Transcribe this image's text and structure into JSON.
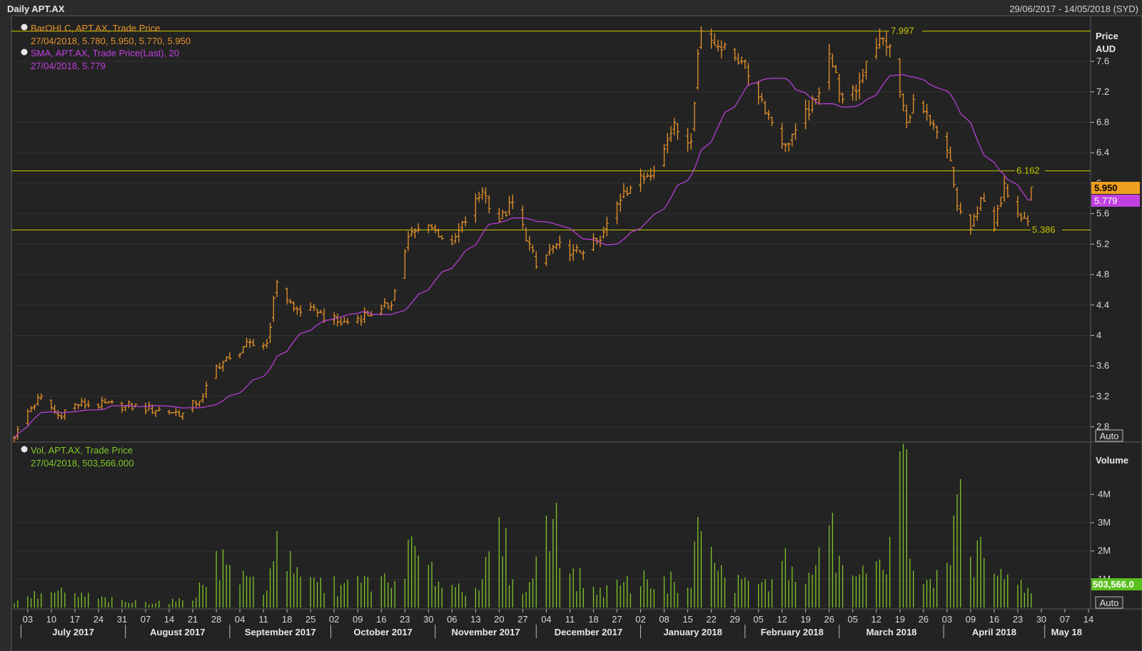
{
  "header": {
    "title": "Daily APT.AX",
    "date_range": "29/06/2017 - 14/05/2018 (SYD)"
  },
  "colors": {
    "background": "#232323",
    "panel_border": "#5a5a5a",
    "bar_color": "#e8932a",
    "sma_color": "#c040e0",
    "volume_color": "#7ec828",
    "hline_color": "#c8c800",
    "axis_text": "#d8d8d8"
  },
  "legend": {
    "bar_title": "BarOHLC, APT.AX, Trade Price",
    "bar_values": "27/04/2018, 5.780, 5.950, 5.770, 5.950",
    "sma_title": "SMA, APT.AX, Trade Price(Last),  20",
    "sma_values": "27/04/2018, 5.779",
    "vol_title": "Vol, APT.AX, Trade Price",
    "vol_values": "27/04/2018, 503,566.000"
  },
  "price_axis": {
    "title": "Price",
    "unit": "AUD",
    "ticks": [
      "7.6",
      "7.2",
      "6.8",
      "6.4",
      "6",
      "5.6",
      "5.2",
      "4.8",
      "4.4",
      "4",
      "3.6",
      "3.2",
      "2.8"
    ],
    "auto_label": "Auto"
  },
  "volume_axis": {
    "title": "Volume",
    "ticks": [
      "4M",
      "3M",
      "2M",
      "1M"
    ],
    "auto_label": "Auto"
  },
  "tags": {
    "last_price": "5.950",
    "sma_last": "5.779",
    "volume_last": "503,566.0"
  },
  "hlines": [
    {
      "value": 7.997,
      "label": "7.997"
    },
    {
      "value": 6.162,
      "label": "6.162"
    },
    {
      "value": 5.386,
      "label": "5.386"
    }
  ],
  "x_axis": {
    "day_ticks": [
      "03",
      "10",
      "17",
      "24",
      "31",
      "07",
      "14",
      "21",
      "28",
      "04",
      "11",
      "18",
      "25",
      "02",
      "09",
      "16",
      "23",
      "30",
      "06",
      "13",
      "20",
      "27",
      "04",
      "11",
      "18",
      "27",
      "02",
      "08",
      "15",
      "22",
      "29",
      "05",
      "12",
      "19",
      "26",
      "05",
      "12",
      "19",
      "26",
      "03",
      "09",
      "16",
      "23",
      "30",
      "07",
      "14"
    ],
    "months": [
      "July 2017",
      "August 2017",
      "September 2017",
      "October 2017",
      "November 2017",
      "December 2017",
      "January 2018",
      "February 2018",
      "March 2018",
      "April 2018",
      "May 18"
    ]
  },
  "chart_data": {
    "type": "ohlc",
    "price_ylim": [
      2.6,
      8.2
    ],
    "volume_ylim": [
      0,
      5700000
    ],
    "sma_period": 20,
    "keypoints": [
      {
        "d": "2017-06-29",
        "c": 2.65,
        "v": 150000
      },
      {
        "d": "2017-07-03",
        "c": 3.0,
        "v": 400000
      },
      {
        "d": "2017-07-07",
        "c": 3.2,
        "v": 500000
      },
      {
        "d": "2017-07-12",
        "c": 2.95,
        "v": 600000
      },
      {
        "d": "2017-07-17",
        "c": 3.1,
        "v": 500000
      },
      {
        "d": "2017-08-01",
        "c": 3.08,
        "v": 200000
      },
      {
        "d": "2017-08-18",
        "c": 2.98,
        "v": 250000
      },
      {
        "d": "2017-08-24",
        "c": 3.2,
        "v": 800000
      },
      {
        "d": "2017-08-28",
        "c": 3.6,
        "v": 2000000
      },
      {
        "d": "2017-09-01",
        "c": 3.7,
        "v": 1500000
      },
      {
        "d": "2017-09-05",
        "c": 3.85,
        "v": 1300000
      },
      {
        "d": "2017-09-12",
        "c": 3.9,
        "v": 600000
      },
      {
        "d": "2017-09-15",
        "c": 4.7,
        "v": 2700000
      },
      {
        "d": "2017-09-20",
        "c": 4.35,
        "v": 1200000
      },
      {
        "d": "2017-09-27",
        "c": 4.3,
        "v": 900000
      },
      {
        "d": "2017-10-04",
        "c": 4.15,
        "v": 800000
      },
      {
        "d": "2017-10-16",
        "c": 4.35,
        "v": 1100000
      },
      {
        "d": "2017-10-19",
        "c": 4.4,
        "v": 700000
      },
      {
        "d": "2017-10-24",
        "c": 5.3,
        "v": 2400000
      },
      {
        "d": "2017-10-30",
        "c": 5.45,
        "v": 1500000
      },
      {
        "d": "2017-11-06",
        "c": 5.2,
        "v": 800000
      },
      {
        "d": "2017-11-15",
        "c": 5.9,
        "v": 1000000
      },
      {
        "d": "2017-11-20",
        "c": 5.5,
        "v": 3200000
      },
      {
        "d": "2017-11-24",
        "c": 5.75,
        "v": 1000000
      },
      {
        "d": "2017-11-29",
        "c": 5.2,
        "v": 900000
      },
      {
        "d": "2017-12-01",
        "c": 4.9,
        "v": 1800000
      },
      {
        "d": "2017-12-07",
        "c": 5.2,
        "v": 3700000
      },
      {
        "d": "2017-12-11",
        "c": 5.05,
        "v": 1200000
      },
      {
        "d": "2017-12-20",
        "c": 5.25,
        "v": 700000
      },
      {
        "d": "2017-12-27",
        "c": 5.9,
        "v": 900000
      },
      {
        "d": "2018-01-03",
        "c": 6.1,
        "v": 1000000
      },
      {
        "d": "2018-01-08",
        "c": 6.45,
        "v": 1100000
      },
      {
        "d": "2018-01-11",
        "c": 6.8,
        "v": 900000
      },
      {
        "d": "2018-01-16",
        "c": 6.55,
        "v": 700000
      },
      {
        "d": "2018-01-18",
        "c": 7.7,
        "v": 3200000
      },
      {
        "d": "2018-01-19",
        "c": 8.0,
        "v": 2700000
      },
      {
        "d": "2018-01-24",
        "c": 7.8,
        "v": 1300000
      },
      {
        "d": "2018-01-31",
        "c": 7.6,
        "v": 1000000
      },
      {
        "d": "2018-02-06",
        "c": 7.1,
        "v": 900000
      },
      {
        "d": "2018-02-09",
        "c": 6.8,
        "v": 1000000
      },
      {
        "d": "2018-02-13",
        "c": 6.5,
        "v": 2100000
      },
      {
        "d": "2018-02-16",
        "c": 6.7,
        "v": 900000
      },
      {
        "d": "2018-02-22",
        "c": 7.1,
        "v": 1500000
      },
      {
        "d": "2018-02-26",
        "c": 7.7,
        "v": 2900000
      },
      {
        "d": "2018-03-02",
        "c": 7.1,
        "v": 1500000
      },
      {
        "d": "2018-03-06",
        "c": 7.2,
        "v": 1100000
      },
      {
        "d": "2018-03-09",
        "c": 7.6,
        "v": 1200000
      },
      {
        "d": "2018-03-13",
        "c": 7.9,
        "v": 1700000
      },
      {
        "d": "2018-03-16",
        "c": 7.8,
        "v": 2500000
      },
      {
        "d": "2018-03-21",
        "c": 6.8,
        "v": 5600000
      },
      {
        "d": "2018-03-23",
        "c": 7.1,
        "v": 1300000
      },
      {
        "d": "2018-03-28",
        "c": 6.8,
        "v": 1000000
      },
      {
        "d": "2018-04-03",
        "c": 6.3,
        "v": 1500000
      },
      {
        "d": "2018-04-05",
        "c": 5.7,
        "v": 4000000
      },
      {
        "d": "2018-04-09",
        "c": 5.4,
        "v": 1800000
      },
      {
        "d": "2018-04-12",
        "c": 5.8,
        "v": 2500000
      },
      {
        "d": "2018-04-16",
        "c": 5.4,
        "v": 1200000
      },
      {
        "d": "2018-04-19",
        "c": 6.0,
        "v": 1000000
      },
      {
        "d": "2018-04-23",
        "c": 5.6,
        "v": 800000
      },
      {
        "d": "2018-04-26",
        "c": 5.5,
        "v": 700000
      },
      {
        "d": "2018-04-27",
        "c": 5.95,
        "v": 503566
      }
    ],
    "last_bar": {
      "date": "27/04/2018",
      "open": 5.78,
      "high": 5.95,
      "low": 5.77,
      "close": 5.95,
      "sma": 5.779,
      "volume": 503566
    }
  }
}
